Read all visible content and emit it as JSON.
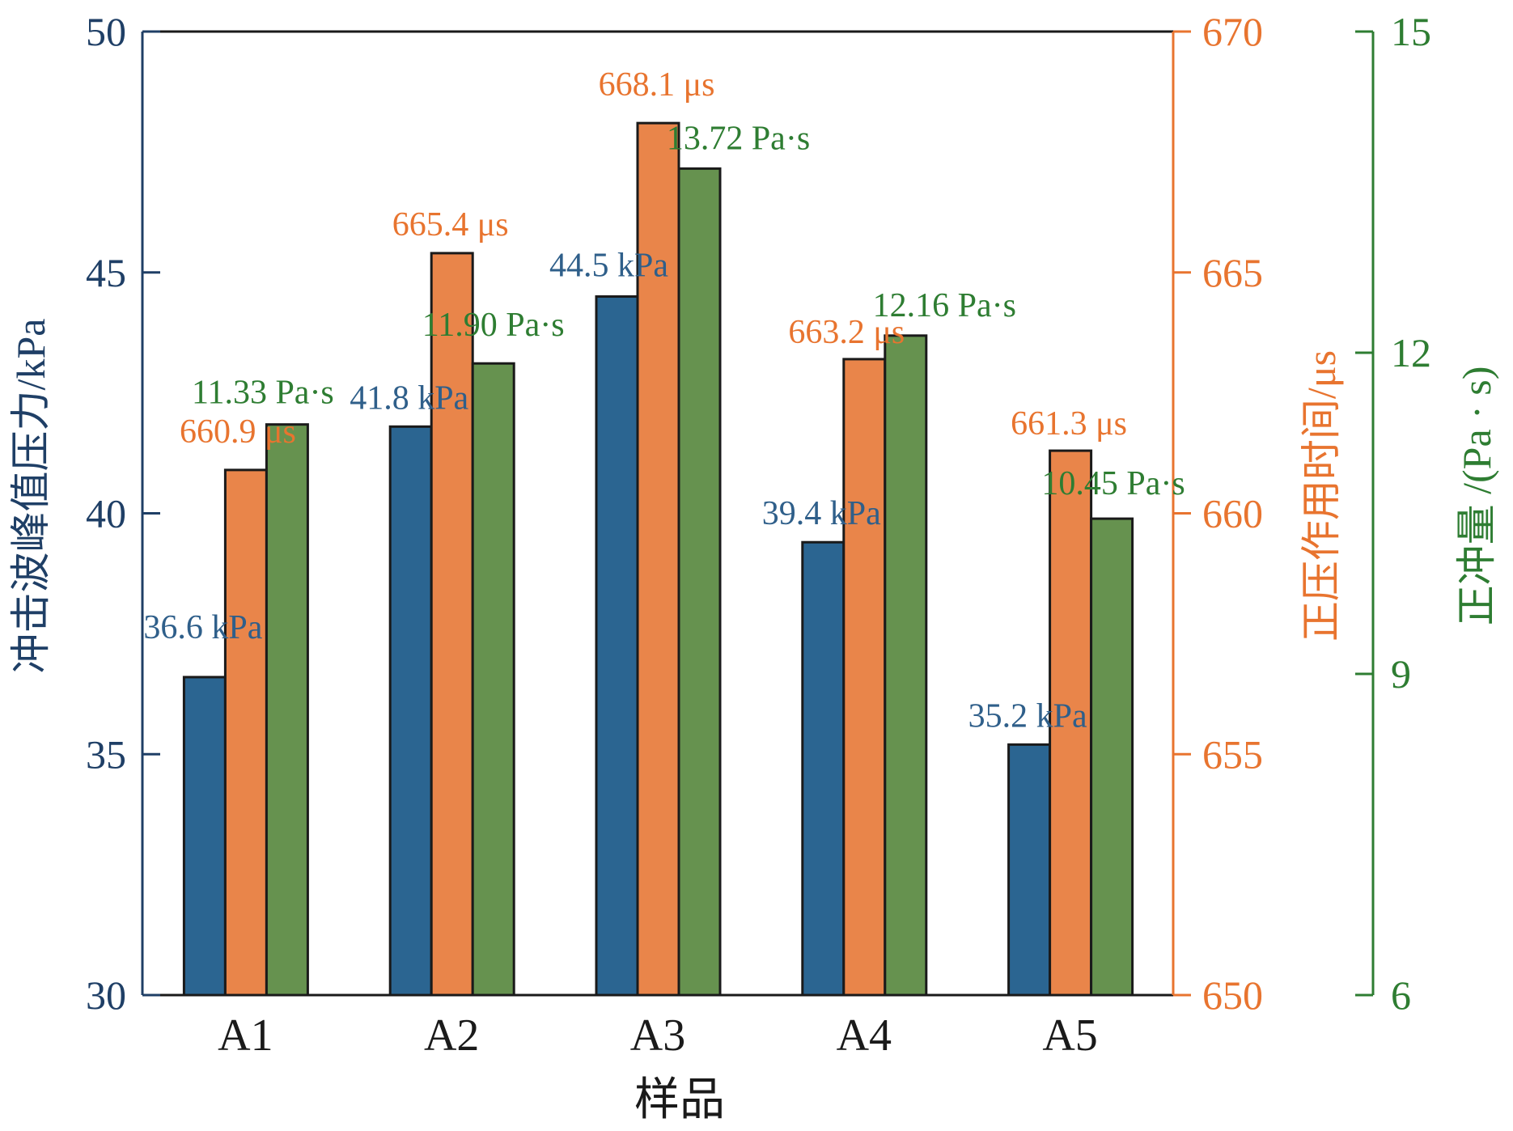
{
  "colors": {
    "pressure": "#2b6591",
    "duration": "#e9854a",
    "impulse": "#66924f",
    "pressure_text": "#2f5f8a",
    "duration_text": "#e8742f",
    "impulse_text": "#2e7d32",
    "axis_left": "#1f3f66",
    "axis_right1": "#e8742f",
    "axis_right2": "#2e7d32",
    "bar_edge": "#1a1a1a"
  },
  "chart_data": {
    "type": "bar",
    "xlabel": "样品",
    "categories": [
      "A1",
      "A2",
      "A3",
      "A4",
      "A5"
    ],
    "axes": {
      "left": {
        "label": "冲击波峰值压力/kPa",
        "ylim": [
          30,
          50
        ],
        "ticks": [
          30,
          35,
          40,
          45,
          50
        ]
      },
      "right1": {
        "label": "正压作用时间/μs",
        "ylim": [
          650,
          670
        ],
        "ticks": [
          650,
          655,
          660,
          665,
          670
        ]
      },
      "right2": {
        "label": "正冲量 /(Pa · s)",
        "ylim": [
          6,
          15
        ],
        "ticks": [
          6,
          9,
          12,
          15
        ]
      }
    },
    "series": [
      {
        "key": "pressure",
        "axis": "left",
        "values": [
          36.6,
          41.8,
          44.5,
          39.4,
          35.2
        ],
        "labels": [
          "36.6 kPa",
          "41.8 kPa",
          "44.5 kPa",
          "39.4 kPa",
          "35.2 kPa"
        ]
      },
      {
        "key": "duration",
        "axis": "right1",
        "values": [
          660.9,
          665.4,
          668.1,
          663.2,
          661.3
        ],
        "labels": [
          "660.9 μs",
          "665.4 μs",
          "668.1 μs",
          "663.2 μs",
          "661.3 μs"
        ]
      },
      {
        "key": "impulse",
        "axis": "right2",
        "values": [
          11.33,
          11.9,
          13.72,
          12.16,
          10.45
        ],
        "labels": [
          "11.33 Pa·s",
          "11.90  Pa·s",
          "13.72 Pa·s",
          "12.16 Pa·s",
          "10.45 Pa·s"
        ]
      }
    ],
    "grid": false
  }
}
